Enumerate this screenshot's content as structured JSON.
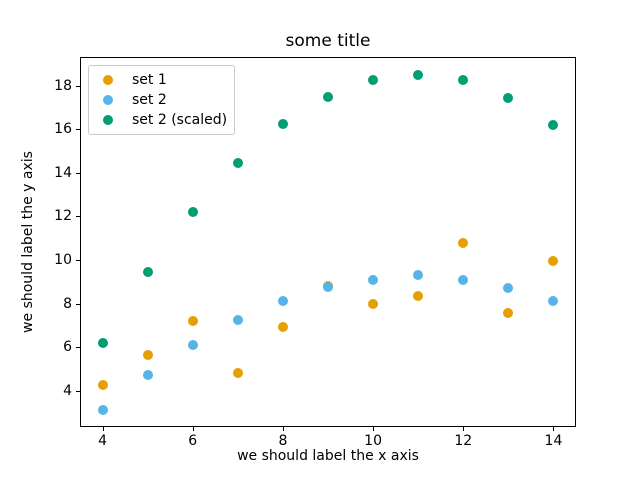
{
  "chart_data": {
    "type": "scatter",
    "title": "some title",
    "xlabel": "we should label the x axis",
    "ylabel": "we should label the y axis",
    "x": [
      4,
      5,
      6,
      7,
      8,
      9,
      10,
      11,
      12,
      13,
      14
    ],
    "series": [
      {
        "name": "set 1",
        "color": "#E69F00",
        "values": [
          4.25,
          5.65,
          7.2,
          4.8,
          6.9,
          8.8,
          8.0,
          8.35,
          10.8,
          7.55,
          9.95
        ]
      },
      {
        "name": "set 2",
        "color": "#56B4E9",
        "values": [
          3.1,
          4.7,
          6.1,
          7.25,
          8.1,
          8.75,
          9.1,
          9.3,
          9.1,
          8.7,
          8.1
        ]
      },
      {
        "name": "set 2 (scaled)",
        "color": "#009E73",
        "values": [
          6.2,
          9.45,
          12.2,
          14.45,
          16.25,
          17.5,
          18.25,
          18.5,
          18.25,
          17.45,
          16.2
        ]
      }
    ],
    "xticks": [
      4,
      6,
      8,
      10,
      12,
      14
    ],
    "yticks": [
      4,
      6,
      8,
      10,
      12,
      14,
      16,
      18
    ],
    "xlim": [
      3.5,
      14.5
    ],
    "ylim": [
      2.33,
      19.32
    ],
    "grid": false,
    "legend_position": "upper left",
    "marker_size_px": 10,
    "axis_color": "#000000"
  }
}
